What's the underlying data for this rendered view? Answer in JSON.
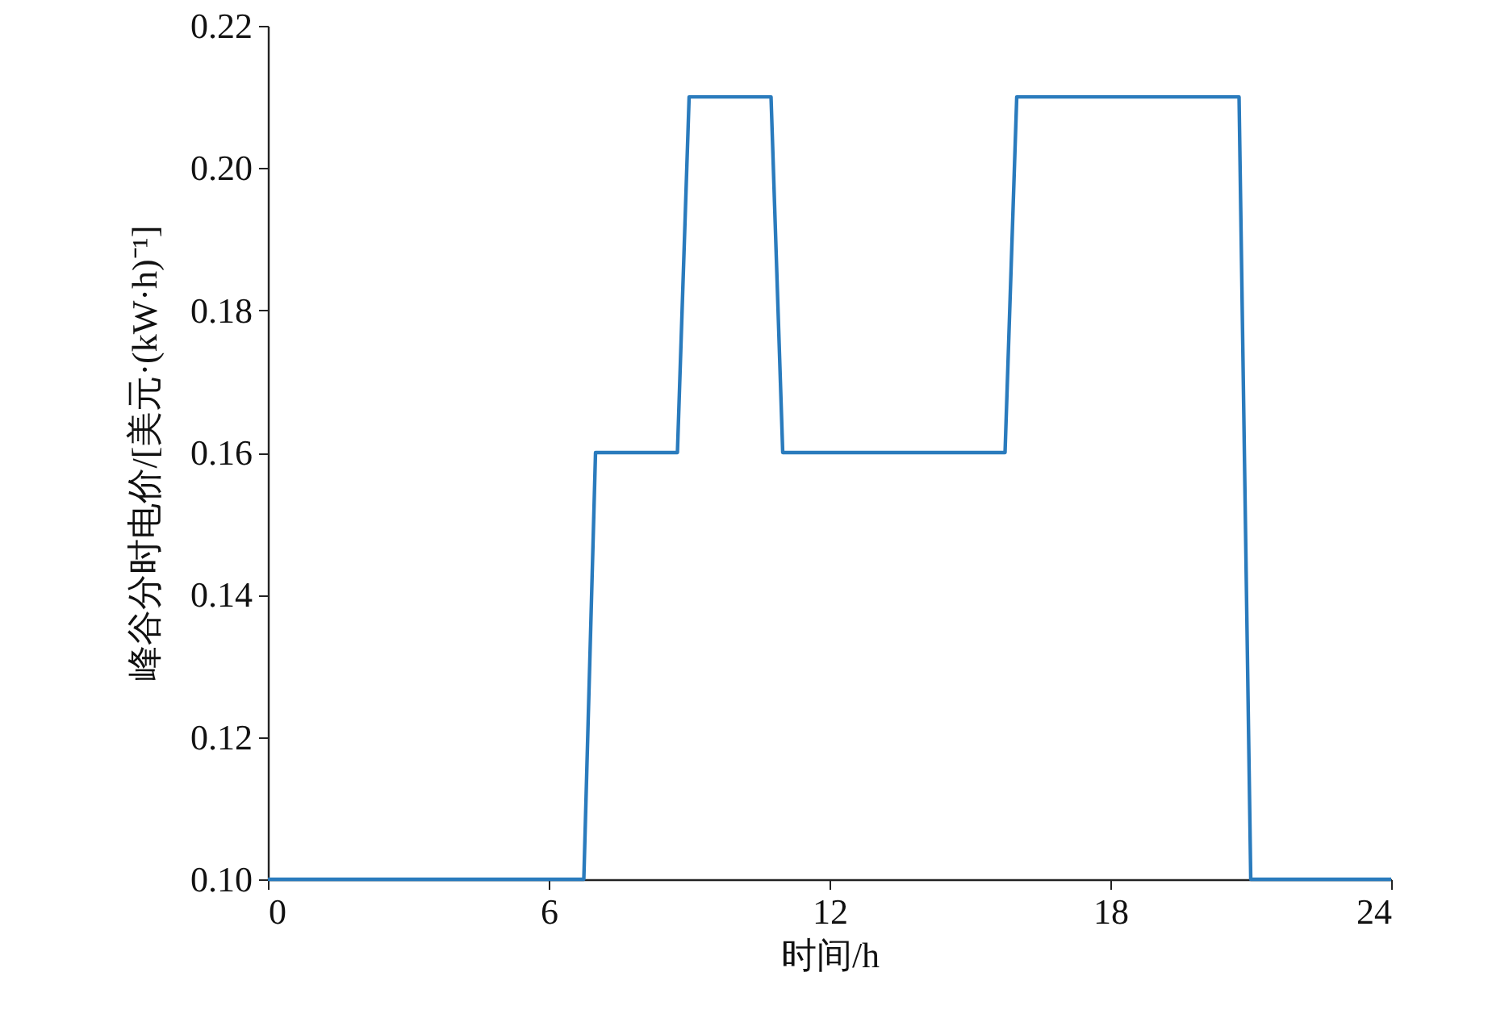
{
  "chart_data": {
    "type": "line",
    "xlabel": "时间/h",
    "ylabel": "峰谷分时电价/[美元·(kW·h)⁻¹]",
    "series": [
      {
        "color": "#2a7bbd",
        "x": [
          0,
          6.75,
          7,
          8.75,
          9,
          10.75,
          11,
          15.75,
          16,
          20.75,
          21,
          24
        ],
        "values": [
          0.1,
          0.1,
          0.16,
          0.16,
          0.21,
          0.21,
          0.16,
          0.16,
          0.21,
          0.21,
          0.1,
          0.1
        ]
      }
    ],
    "xlim": [
      0,
      24
    ],
    "xticks": [
      0,
      6,
      12,
      18,
      24
    ],
    "ylim": [
      0.1,
      0.22
    ],
    "yticks": [
      {
        "value": 0.1,
        "label": "0.10"
      },
      {
        "value": 0.12,
        "label": "0.12"
      },
      {
        "value": 0.14,
        "label": "0.14"
      },
      {
        "value": 0.16,
        "label": "0.16"
      },
      {
        "value": 0.18,
        "label": "0.18"
      },
      {
        "value": 0.2,
        "label": "0.20"
      },
      {
        "value": 0.22,
        "label": "0.22"
      }
    ],
    "grid": false,
    "marker": "none",
    "line_style": "solid"
  }
}
